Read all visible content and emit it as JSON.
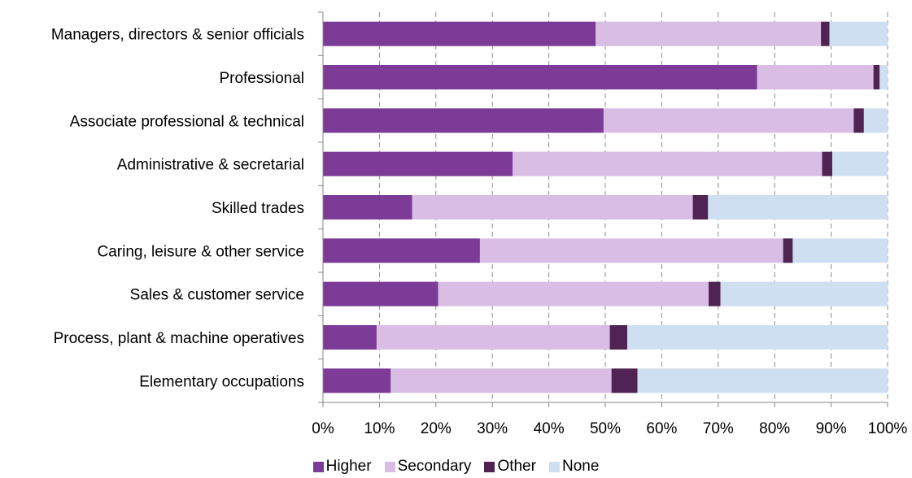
{
  "chart_data": {
    "type": "bar",
    "orientation": "horizontal",
    "stacked": "100%",
    "categories": [
      "Managers, directors & senior officials",
      "Professional",
      "Associate professional & technical",
      "Administrative & secretarial",
      "Skilled trades",
      "Caring, leisure & other service",
      "Sales & customer service",
      "Process, plant & machine operatives",
      "Elementary occupations"
    ],
    "series": [
      {
        "name": "Higher",
        "color": "#7b3b96",
        "values": [
          48.3,
          76.9,
          49.7,
          33.6,
          15.8,
          27.8,
          20.4,
          9.5,
          12.0
        ]
      },
      {
        "name": "Secondary",
        "color": "#d9bde4",
        "values": [
          39.9,
          20.6,
          44.3,
          54.8,
          49.7,
          53.7,
          47.9,
          41.3,
          39.1
        ]
      },
      {
        "name": "Other",
        "color": "#4f2352",
        "values": [
          1.5,
          1.1,
          1.8,
          1.8,
          2.7,
          1.7,
          2.1,
          3.1,
          4.6
        ]
      },
      {
        "name": "None",
        "color": "#cfdff2",
        "values": [
          10.3,
          1.4,
          4.2,
          9.8,
          31.8,
          16.8,
          29.6,
          46.1,
          44.3
        ]
      }
    ],
    "x_ticks": [
      "0%",
      "10%",
      "20%",
      "30%",
      "40%",
      "50%",
      "60%",
      "70%",
      "80%",
      "90%",
      "100%"
    ],
    "xlim": [
      0,
      100
    ],
    "grid": "vertical dashed",
    "legend_position": "bottom",
    "title": "",
    "xlabel": "",
    "ylabel": ""
  }
}
